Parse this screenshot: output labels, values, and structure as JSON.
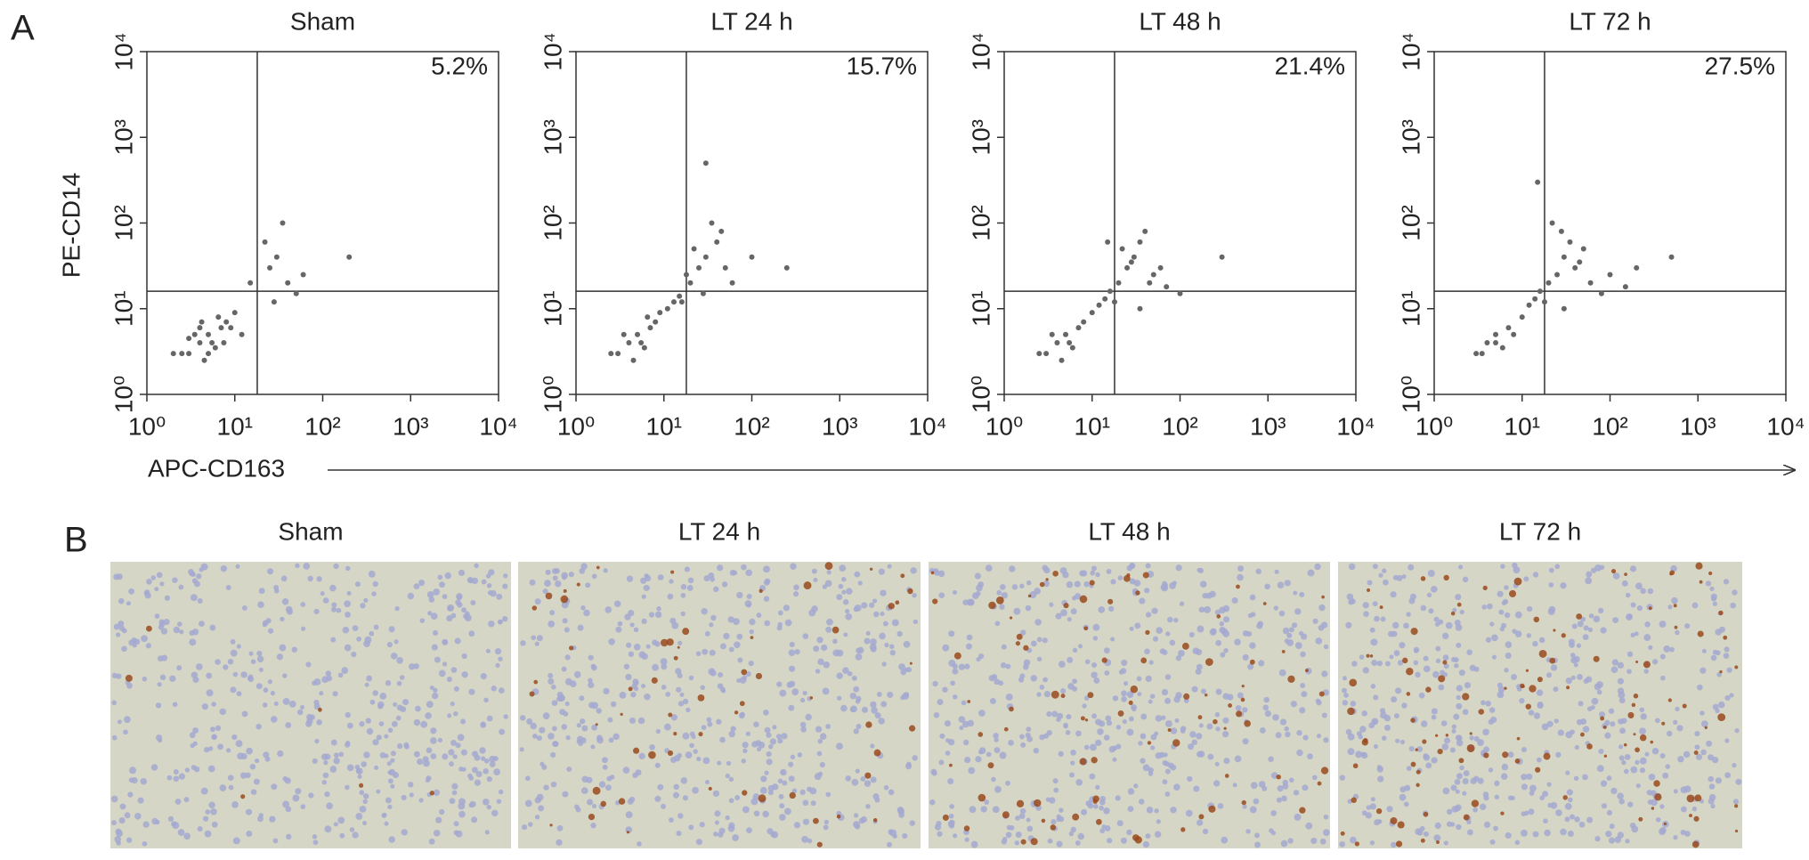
{
  "figure": {
    "panel_a": "A",
    "panel_b": "B",
    "y_label": "PE-CD14",
    "x_label": "APC-CD163"
  },
  "histology": {
    "titles": [
      "Sham",
      "LT 24 h",
      "LT 48 h",
      "LT 72 h"
    ]
  },
  "chart_data": [
    {
      "type": "scatter",
      "title": "Sham",
      "annotation": "5.2%",
      "log_x": true,
      "log_y": true,
      "color": "#666666",
      "xlim": [
        1,
        10000
      ],
      "ylim": [
        1,
        10000
      ],
      "xticks": [
        {
          "value": 1,
          "label": "10⁰"
        },
        {
          "value": 10,
          "label": "10¹"
        },
        {
          "value": 100,
          "label": "10²"
        },
        {
          "value": 1000,
          "label": "10³"
        },
        {
          "value": 10000,
          "label": "10⁴"
        }
      ],
      "yticks": [
        {
          "value": 1,
          "label": "10⁰"
        },
        {
          "value": 10,
          "label": "10¹"
        },
        {
          "value": 100,
          "label": "10²"
        },
        {
          "value": 1000,
          "label": "10³"
        },
        {
          "value": 10000,
          "label": "10⁴"
        }
      ],
      "gate": {
        "x": 18,
        "y": 16
      },
      "x": [
        3,
        4,
        5,
        6,
        7,
        3.5,
        4.5,
        5.5,
        2.5,
        8,
        6.5,
        4,
        5,
        3,
        7.5,
        9,
        10,
        12,
        2,
        4.2,
        25,
        30,
        40,
        60,
        22,
        35,
        15,
        50,
        200,
        28
      ],
      "values": [
        3,
        4,
        5,
        3.5,
        6,
        5,
        2.5,
        4,
        3,
        7,
        8,
        6,
        3,
        4.5,
        4,
        6,
        9,
        5,
        3,
        7,
        30,
        40,
        20,
        25,
        60,
        100,
        20,
        15,
        40,
        12
      ]
    },
    {
      "type": "scatter",
      "title": "LT 24 h",
      "annotation": "15.7%",
      "log_x": true,
      "log_y": true,
      "color": "#666666",
      "xlim": [
        1,
        10000
      ],
      "ylim": [
        1,
        10000
      ],
      "xticks": [
        {
          "value": 1,
          "label": "10⁰"
        },
        {
          "value": 10,
          "label": "10¹"
        },
        {
          "value": 100,
          "label": "10²"
        },
        {
          "value": 1000,
          "label": "10³"
        },
        {
          "value": 10000,
          "label": "10⁴"
        }
      ],
      "yticks": [
        {
          "value": 1,
          "label": "10⁰"
        },
        {
          "value": 10,
          "label": "10¹"
        },
        {
          "value": 100,
          "label": "10²"
        },
        {
          "value": 1000,
          "label": "10³"
        },
        {
          "value": 10000,
          "label": "10⁴"
        }
      ],
      "gate": {
        "x": 18,
        "y": 16
      },
      "x": [
        3,
        4,
        5,
        6,
        7,
        3.5,
        4.5,
        5.5,
        2.5,
        8,
        6.5,
        9,
        11,
        13,
        15,
        20,
        25,
        30,
        40,
        18,
        22,
        35,
        50,
        28,
        60,
        100,
        16,
        45,
        250,
        30
      ],
      "values": [
        3,
        4,
        5,
        3.5,
        6,
        5,
        2.5,
        4,
        3,
        7,
        8,
        9,
        10,
        12,
        14,
        20,
        30,
        40,
        60,
        25,
        50,
        100,
        30,
        15,
        20,
        40,
        12,
        80,
        30,
        500
      ]
    },
    {
      "type": "scatter",
      "title": "LT 48 h",
      "annotation": "21.4%",
      "log_x": true,
      "log_y": true,
      "color": "#666666",
      "xlim": [
        1,
        10000
      ],
      "ylim": [
        1,
        10000
      ],
      "xticks": [
        {
          "value": 1,
          "label": "10⁰"
        },
        {
          "value": 10,
          "label": "10¹"
        },
        {
          "value": 100,
          "label": "10²"
        },
        {
          "value": 1000,
          "label": "10³"
        },
        {
          "value": 10000,
          "label": "10⁴"
        }
      ],
      "yticks": [
        {
          "value": 1,
          "label": "10⁰"
        },
        {
          "value": 10,
          "label": "10¹"
        },
        {
          "value": 100,
          "label": "10²"
        },
        {
          "value": 1000,
          "label": "10³"
        },
        {
          "value": 10000,
          "label": "10⁴"
        }
      ],
      "gate": {
        "x": 18,
        "y": 16
      },
      "x": [
        3,
        4,
        5,
        6,
        7,
        3.5,
        4.5,
        5.5,
        2.5,
        8,
        10,
        12,
        14,
        16,
        20,
        25,
        30,
        35,
        40,
        50,
        22,
        28,
        45,
        60,
        18,
        70,
        100,
        15,
        300,
        35
      ],
      "values": [
        3,
        4,
        5,
        3.5,
        6,
        5,
        2.5,
        4,
        3,
        7,
        9,
        11,
        13,
        16,
        20,
        30,
        40,
        60,
        80,
        25,
        50,
        35,
        20,
        30,
        12,
        18,
        15,
        60,
        40,
        10
      ]
    },
    {
      "type": "scatter",
      "title": "LT 72 h",
      "annotation": "27.5%",
      "log_x": true,
      "log_y": true,
      "color": "#666666",
      "xlim": [
        1,
        10000
      ],
      "ylim": [
        1,
        10000
      ],
      "xticks": [
        {
          "value": 1,
          "label": "10⁰"
        },
        {
          "value": 10,
          "label": "10¹"
        },
        {
          "value": 100,
          "label": "10²"
        },
        {
          "value": 1000,
          "label": "10³"
        },
        {
          "value": 10000,
          "label": "10⁴"
        }
      ],
      "yticks": [
        {
          "value": 1,
          "label": "10⁰"
        },
        {
          "value": 10,
          "label": "10¹"
        },
        {
          "value": 100,
          "label": "10²"
        },
        {
          "value": 1000,
          "label": "10³"
        },
        {
          "value": 10000,
          "label": "10⁴"
        }
      ],
      "gate": {
        "x": 18,
        "y": 16
      },
      "x": [
        3,
        4,
        5,
        6,
        7,
        8,
        3.5,
        5,
        10,
        12,
        14,
        16,
        20,
        25,
        30,
        35,
        40,
        50,
        60,
        80,
        22,
        28,
        45,
        18,
        100,
        150,
        15,
        200,
        500,
        30
      ],
      "values": [
        3,
        4,
        5,
        3.5,
        6,
        5,
        3,
        4,
        8,
        11,
        13,
        16,
        20,
        25,
        40,
        60,
        30,
        50,
        20,
        15,
        100,
        80,
        35,
        12,
        25,
        18,
        300,
        30,
        40,
        10
      ]
    }
  ]
}
